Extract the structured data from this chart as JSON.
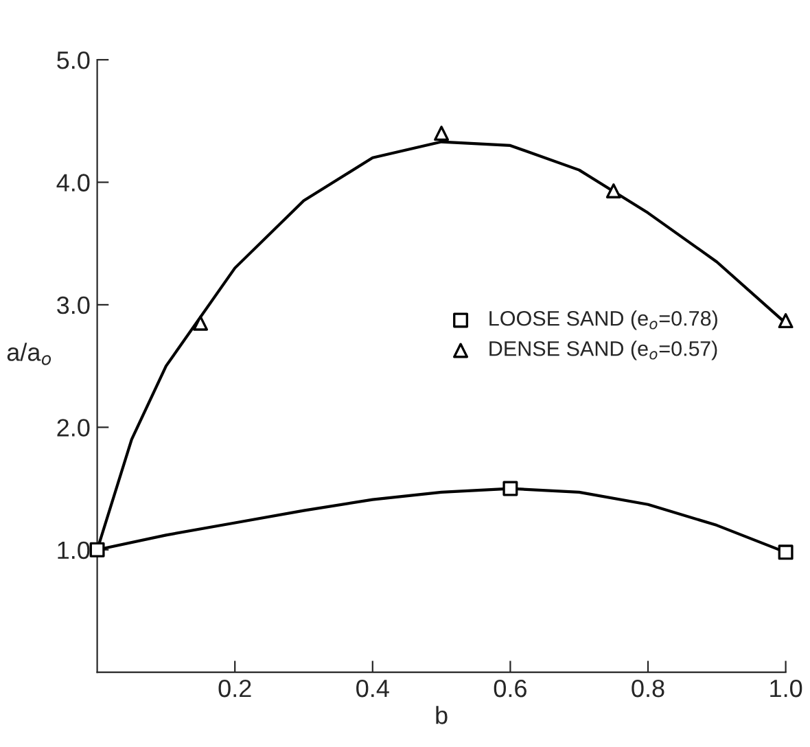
{
  "chart_data": {
    "type": "scatter",
    "xlabel": "b",
    "ylabel": "a/a$_{o}$",
    "xlim": [
      0,
      1.0
    ],
    "ylim": [
      0,
      5.0
    ],
    "xticks": [
      0.2,
      0.4,
      0.6,
      0.8,
      {
        "value": 1.0,
        "label": "1.0"
      }
    ],
    "yticks": [
      {
        "value": 1.0,
        "label": "1.0"
      },
      {
        "value": 2.0,
        "label": "2.0"
      },
      {
        "value": 3.0,
        "label": "3.0"
      },
      {
        "value": 4.0,
        "label": "4.0"
      },
      {
        "value": 5.0,
        "label": "5.0"
      }
    ],
    "grid": false,
    "legend": "right",
    "series": [
      {
        "name": "LOOSE SAND (e$_{o}$=0.78)",
        "color": "#000000",
        "marker": "square",
        "x": [
          0,
          0.6,
          1.0
        ],
        "values": [
          1.0,
          1.5,
          0.98
        ]
      },
      {
        "name": "DENSE SAND (e$_{o}$=0.57)",
        "color": "#000000",
        "marker": "triangle",
        "x": [
          0.15,
          0.5,
          0.75,
          1.0
        ],
        "values": [
          2.85,
          4.4,
          3.93,
          2.87
        ]
      },
      {
        "type": "line",
        "color": "#000000",
        "marker": "none",
        "line_style": "solid",
        "x": [
          0,
          0.1,
          0.2,
          0.3,
          0.4,
          0.5,
          0.6,
          0.7,
          0.8,
          0.9,
          1.0
        ],
        "values": [
          1.0,
          1.12,
          1.22,
          1.32,
          1.41,
          1.47,
          1.5,
          1.47,
          1.37,
          1.2,
          0.98
        ]
      },
      {
        "type": "line",
        "color": "#000000",
        "marker": "none",
        "line_style": "solid",
        "x": [
          0,
          0.05,
          0.1,
          0.2,
          0.3,
          0.4,
          0.5,
          0.6,
          0.7,
          0.8,
          0.9,
          1.0
        ],
        "values": [
          1.0,
          1.9,
          2.5,
          3.3,
          3.85,
          4.2,
          4.33,
          4.3,
          4.1,
          3.75,
          3.35,
          2.85
        ]
      }
    ]
  }
}
